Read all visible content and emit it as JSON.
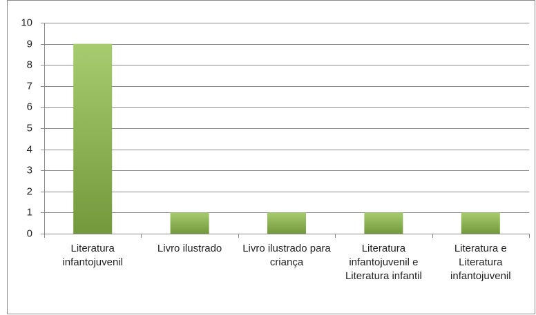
{
  "chart_data": {
    "type": "bar",
    "categories": [
      "Literatura infantojuvenil",
      "Livro ilustrado",
      "Livro ilustrado para criança",
      "Literatura infantojuvenil e Literatura infantil",
      "Literatura e Literatura infantojuvenil"
    ],
    "values": [
      9,
      1,
      1,
      1,
      1
    ],
    "color": "#8fbf4a",
    "ylim": [
      0,
      10
    ],
    "yticks": [
      0,
      1,
      2,
      3,
      4,
      5,
      6,
      7,
      8,
      9,
      10
    ],
    "grid": true
  }
}
